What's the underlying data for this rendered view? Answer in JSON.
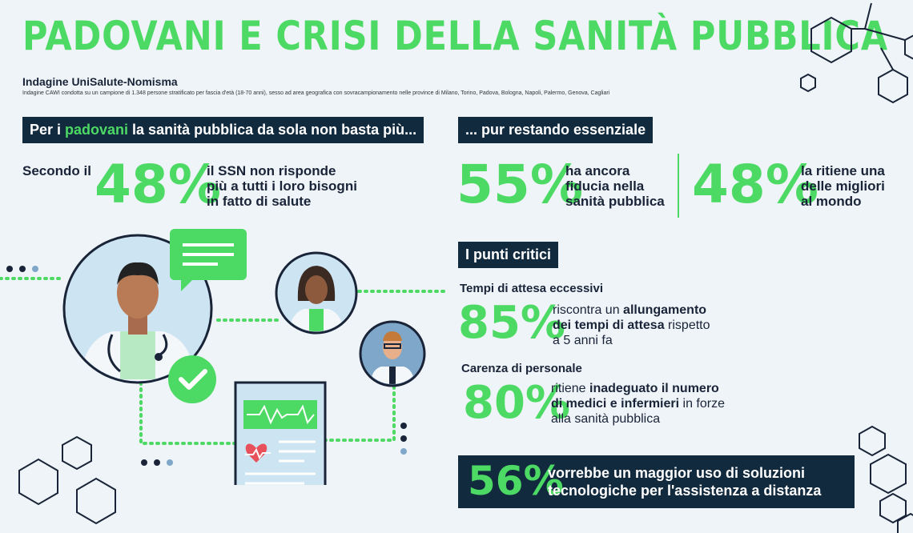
{
  "header": {
    "title": "PADOVANI E CRISI DELLA SANITÀ PUBBLICA",
    "survey_name": "Indagine UniSalute-Nomisma",
    "survey_desc": "Indagine CAWI condotta su un campione di 1.348 persone stratificato per fascia d'età (18-70 anni), sesso ad area geografica con sovracampionamento nelle province di Milano, Torino, Padova, Bologna, Napoli, Palermo, Genova, Cagliari"
  },
  "left": {
    "banner_pre": "Per i ",
    "banner_hl": "padovani",
    "banner_post": " la sanità pubblica da sola non basta più...",
    "lead": "Secondo il",
    "stat_value": "48%",
    "stat_text": [
      "il SSN non risponde",
      "più a tutti i loro bisogni",
      "in fatto di salute"
    ]
  },
  "right": {
    "banner": "... pur restando essenziale",
    "stats": [
      {
        "value": "55%",
        "text": [
          "ha ancora",
          "fiducia nella",
          "sanità pubblica"
        ]
      },
      {
        "value": "48%",
        "text": [
          "la ritiene una",
          "delle migliori",
          "al mondo"
        ]
      }
    ],
    "critical_banner": "I punti critici",
    "critical": [
      {
        "heading": "Tempi di attesa eccessivi",
        "value": "85%",
        "line1_pre": "riscontra un ",
        "line1_bold": "allungamento",
        "line2_bold": "dei tempi di attesa",
        "line2_post": " rispetto",
        "line3": "a 5 anni fa"
      },
      {
        "heading": "Carenza di personale",
        "value": "80%",
        "line1_pre": "ritiene ",
        "line1_bold": "inadeguato il numero",
        "line2_bold": "di medici e infermieri",
        "line2_post": " in forze",
        "line3": "alla sanità pubblica"
      }
    ]
  },
  "bottom": {
    "value": "56%",
    "text": [
      "vorrebbe un maggior uso di soluzioni",
      "tecnologiche per l'assistenza a distanza"
    ]
  },
  "colors": {
    "accent": "#4cd964",
    "navy": "#122a3e",
    "background": "#eef4f8"
  }
}
